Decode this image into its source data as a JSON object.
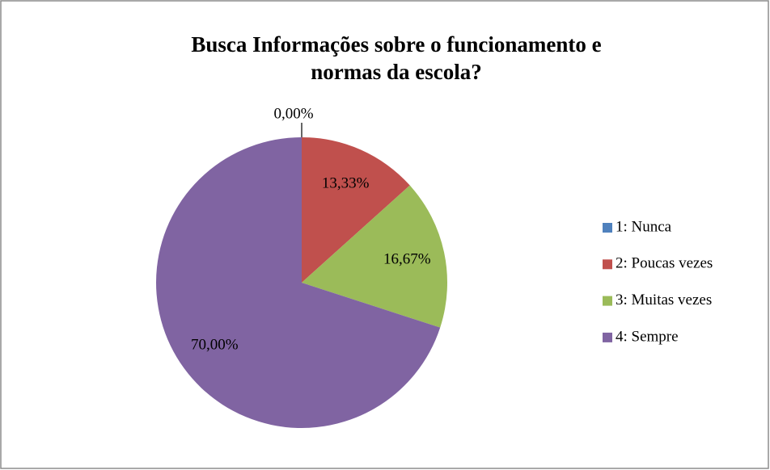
{
  "chart_data": {
    "type": "pie",
    "title": "Busca Informações sobre o funcionamento e normas da escola?",
    "categories": [
      "1: Nunca",
      "2: Poucas vezes",
      "3: Muitas vezes",
      "4: Sempre"
    ],
    "values": [
      0,
      13.33,
      16.67,
      70
    ],
    "value_labels": [
      "0,00%",
      "13,33%",
      "16,67%",
      "70,00%"
    ],
    "colors": [
      "#4f81bd",
      "#c0504d",
      "#9bbb59",
      "#8064a2"
    ],
    "legend": "right"
  }
}
